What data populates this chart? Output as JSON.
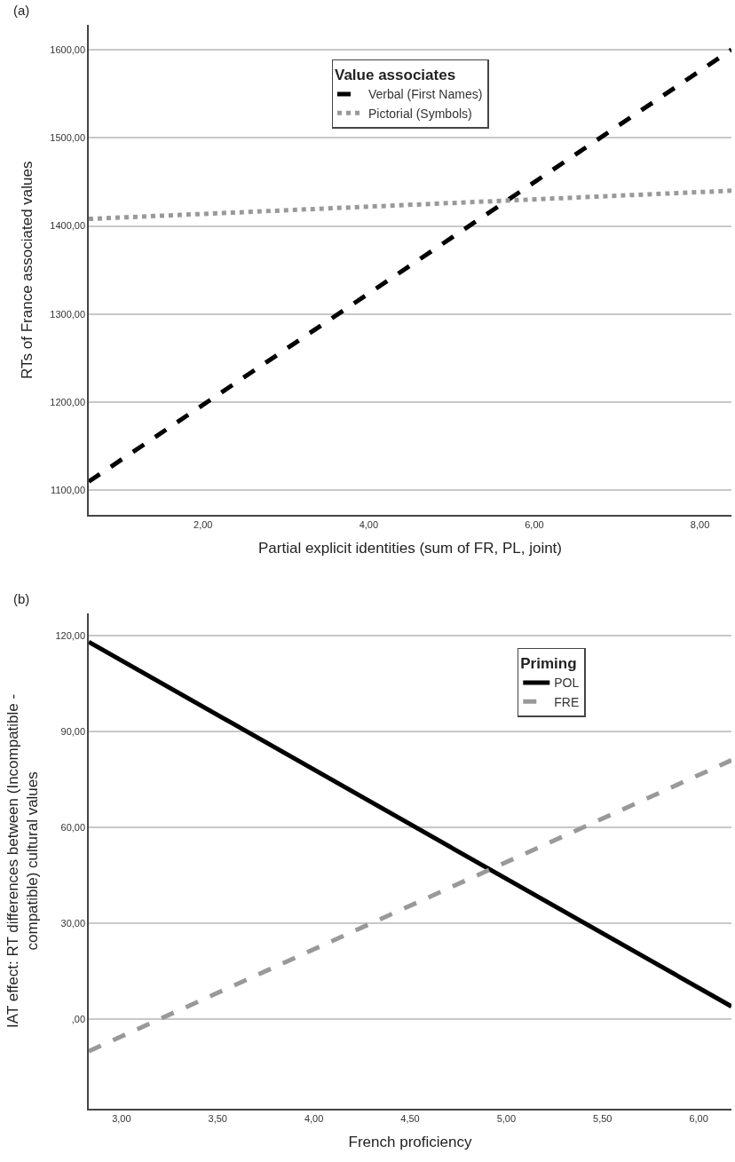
{
  "chart_data": [
    {
      "type": "line",
      "xlabel": "Partial explicit identities (sum of FR, PL, joint)",
      "ylabel": "RTs of France associated values",
      "legend_title": "Value associates",
      "annotations": [
        "(a)"
      ],
      "xlim": [
        0.62,
        8.38
      ],
      "ylim": [
        1072,
        1628
      ],
      "xticks": [
        {
          "value": 2,
          "label": "2,00"
        },
        {
          "value": 4,
          "label": "4,00"
        },
        {
          "value": 6,
          "label": "6,00"
        },
        {
          "value": 8,
          "label": "8,00"
        }
      ],
      "yticks": [
        {
          "value": 1100,
          "label": "1100,00"
        },
        {
          "value": 1200,
          "label": "1200,00"
        },
        {
          "value": 1300,
          "label": "1300,00"
        },
        {
          "value": 1400,
          "label": "1400,00"
        },
        {
          "value": 1500,
          "label": "1500,00"
        },
        {
          "value": 1600,
          "label": "1600,00"
        }
      ],
      "grid": "y",
      "legend": "top",
      "marker": "none",
      "series": [
        {
          "name": "Verbal (First Names)",
          "color": "#000000",
          "line_style": "dashed",
          "x": [
            0.62,
            8.38
          ],
          "values": [
            1110,
            1600
          ]
        },
        {
          "name": "Pictorial (Symbols)",
          "color": "#999999",
          "line_style": "dotted",
          "x": [
            0.62,
            8.38
          ],
          "values": [
            1408,
            1440
          ]
        }
      ]
    },
    {
      "type": "line",
      "xlabel": "French proficiency",
      "ylabel": "IAT effect: RT differences between (Incompatible -\ncompatible) cultural values",
      "legend_title": "Priming",
      "annotations": [
        "(b)"
      ],
      "xlim": [
        2.83,
        6.17
      ],
      "ylim": [
        -28,
        127
      ],
      "xticks": [
        {
          "value": 3,
          "label": "3,00"
        },
        {
          "value": 3.5,
          "label": "3,50"
        },
        {
          "value": 4,
          "label": "4,00"
        },
        {
          "value": 4.5,
          "label": "4,50"
        },
        {
          "value": 5,
          "label": "5,00"
        },
        {
          "value": 5.5,
          "label": "5,50"
        },
        {
          "value": 6,
          "label": "6,00"
        }
      ],
      "yticks": [
        {
          "value": 0,
          "label": ",00"
        },
        {
          "value": 30,
          "label": "30,00"
        },
        {
          "value": 60,
          "label": "60,00"
        },
        {
          "value": 90,
          "label": "90,00"
        },
        {
          "value": 120,
          "label": "120,00"
        }
      ],
      "grid": "y",
      "legend": "top right",
      "marker": "none",
      "series": [
        {
          "name": "POL",
          "color": "#000000",
          "line_style": "solid",
          "x": [
            2.83,
            6.17
          ],
          "values": [
            118,
            4
          ]
        },
        {
          "name": "FRE",
          "color": "#999999",
          "line_style": "dashed",
          "x": [
            2.83,
            6.17
          ],
          "values": [
            -10,
            81
          ]
        }
      ]
    }
  ]
}
